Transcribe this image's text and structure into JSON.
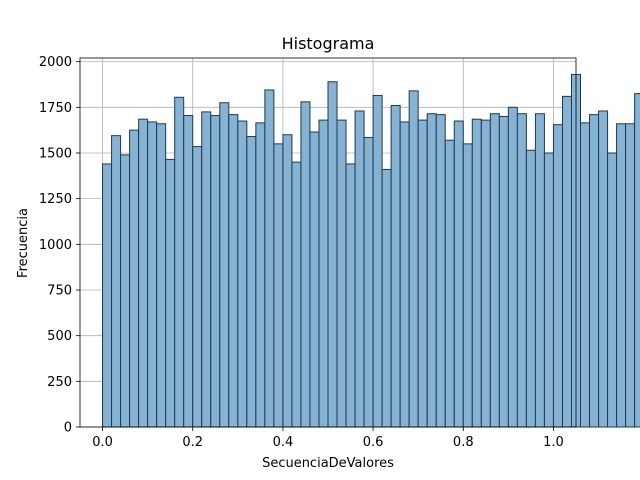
{
  "chart_data": {
    "type": "bar",
    "title": "Histograma",
    "xlabel": "SecuenciaDeValores",
    "ylabel": "Frecuencia",
    "xlim": [
      -0.05,
      1.05
    ],
    "ylim": [
      0,
      2020
    ],
    "xticks": [
      0.0,
      0.2,
      0.4,
      0.6,
      0.8,
      1.0
    ],
    "xtick_labels": [
      "0.0",
      "0.2",
      "0.4",
      "0.6",
      "0.8",
      "1.0"
    ],
    "yticks": [
      0,
      250,
      500,
      750,
      1000,
      1250,
      1500,
      1750,
      2000
    ],
    "ytick_labels": [
      "0",
      "250",
      "500",
      "750",
      "1000",
      "1250",
      "1500",
      "1750",
      "2000"
    ],
    "grid": true,
    "bar_fill": "#86b2d4",
    "bar_edge": "#1f3a4d",
    "bin_start": 0.0,
    "bin_width": 0.02,
    "values": [
      1440,
      1595,
      1490,
      1625,
      1685,
      1670,
      1660,
      1465,
      1805,
      1705,
      1535,
      1725,
      1705,
      1775,
      1710,
      1675,
      1590,
      1665,
      1845,
      1550,
      1600,
      1450,
      1780,
      1615,
      1680,
      1890,
      1680,
      1440,
      1730,
      1585,
      1815,
      1410,
      1760,
      1670,
      1840,
      1680,
      1715,
      1710,
      1570,
      1675,
      1550,
      1685,
      1680,
      1715,
      1700,
      1750,
      1715,
      1515,
      1715,
      1500,
      1655,
      1810,
      1930,
      1665,
      1710,
      1730,
      1500,
      1660,
      1660,
      1825
    ]
  }
}
